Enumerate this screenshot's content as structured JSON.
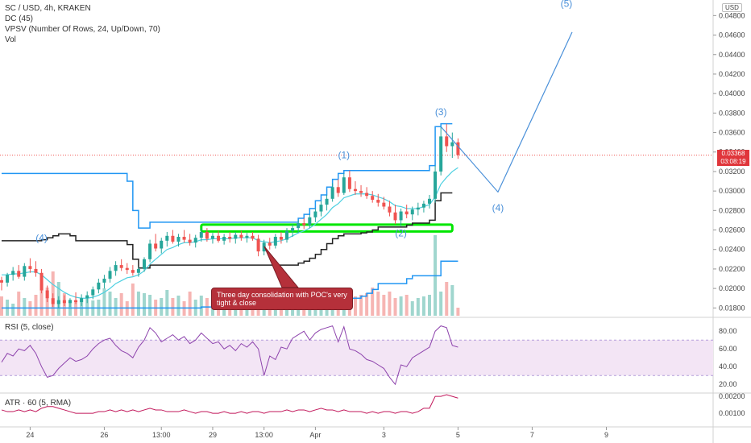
{
  "legend": {
    "title": "SC / USD, 4h, KRAKEN",
    "dc": "DC (45)",
    "vpsv": "VPSV (Number Of Rows, 24, Up/Down, 70)",
    "vol": "Vol",
    "rsi": "RSI (5, close)",
    "atr": "ATR · 60 (5, RMA)"
  },
  "currency_button": "USD",
  "last_price": {
    "value": "0.03368",
    "countdown": "03:08:19"
  },
  "annotation": "Three day consolidation with POC's very tight & close",
  "colors": {
    "up": "#26a69a",
    "down": "#ef5350",
    "dc_upper": "#2196f3",
    "dc_lower": "#2196f3",
    "dc_basis": "#222222",
    "ma": "#4dd0e1",
    "rsi": "#8e44ad",
    "atr": "#c2185b",
    "wave": "#4a90d9",
    "poc_box": "#00e600",
    "callout": "#b5303a"
  },
  "chart_data": [
    {
      "type": "candlestick",
      "panel": "price",
      "x_ticks": [
        "24",
        "26",
        "13:00",
        "29",
        "13:00",
        "Apr",
        "3",
        "5",
        "7",
        "9"
      ],
      "y_ticks": [
        "0.04800",
        "0.04600",
        "0.04400",
        "0.04200",
        "0.04000",
        "0.03800",
        "0.03600",
        "0.03400",
        "0.03200",
        "0.03000",
        "0.02800",
        "0.02600",
        "0.02400",
        "0.02200",
        "0.02000",
        "0.01800"
      ],
      "ylim": [
        0.0172,
        0.0496
      ],
      "xlim": [
        0,
        125
      ],
      "current_price": 0.03368,
      "ohlc": [
        [
          0.02085,
          0.0212,
          0.0198,
          0.0206
        ],
        [
          0.0206,
          0.0216,
          0.0202,
          0.0214
        ],
        [
          0.0214,
          0.0222,
          0.0208,
          0.0218
        ],
        [
          0.0218,
          0.0224,
          0.021,
          0.0212
        ],
        [
          0.0212,
          0.0226,
          0.0208,
          0.0223
        ],
        [
          0.0223,
          0.0231,
          0.0216,
          0.022
        ],
        [
          0.022,
          0.0228,
          0.0212,
          0.0216
        ],
        [
          0.0216,
          0.022,
          0.0195,
          0.0198
        ],
        [
          0.0198,
          0.0203,
          0.0186,
          0.019
        ],
        [
          0.019,
          0.0195,
          0.0181,
          0.0184
        ],
        [
          0.0184,
          0.0192,
          0.018,
          0.0188
        ],
        [
          0.0188,
          0.0193,
          0.0182,
          0.0185
        ],
        [
          0.0185,
          0.019,
          0.0181,
          0.0188
        ],
        [
          0.0188,
          0.0196,
          0.0184,
          0.0186
        ],
        [
          0.0186,
          0.0194,
          0.0182,
          0.019
        ],
        [
          0.019,
          0.0197,
          0.0185,
          0.0193
        ],
        [
          0.0193,
          0.0202,
          0.0189,
          0.0199
        ],
        [
          0.0199,
          0.021,
          0.0195,
          0.0206
        ],
        [
          0.0206,
          0.0214,
          0.02,
          0.021
        ],
        [
          0.021,
          0.0222,
          0.0206,
          0.0218
        ],
        [
          0.0218,
          0.0228,
          0.0213,
          0.0224
        ],
        [
          0.0224,
          0.023,
          0.0218,
          0.0221
        ],
        [
          0.0221,
          0.0226,
          0.0215,
          0.0219
        ],
        [
          0.0219,
          0.0224,
          0.0213,
          0.0216
        ],
        [
          0.0216,
          0.0222,
          0.0212,
          0.022
        ],
        [
          0.022,
          0.0232,
          0.0217,
          0.023
        ],
        [
          0.023,
          0.025,
          0.0227,
          0.0246
        ],
        [
          0.0246,
          0.0256,
          0.0238,
          0.0241
        ],
        [
          0.0241,
          0.0252,
          0.0236,
          0.0249
        ],
        [
          0.0249,
          0.0258,
          0.0243,
          0.0254
        ],
        [
          0.0254,
          0.026,
          0.0246,
          0.0248
        ],
        [
          0.0248,
          0.0256,
          0.0243,
          0.0253
        ],
        [
          0.0253,
          0.026,
          0.0247,
          0.025
        ],
        [
          0.025,
          0.0256,
          0.0244,
          0.0247
        ],
        [
          0.0247,
          0.0255,
          0.0242,
          0.0252
        ],
        [
          0.0252,
          0.0262,
          0.0248,
          0.0258
        ],
        [
          0.0258,
          0.0262,
          0.0248,
          0.0251
        ],
        [
          0.0251,
          0.0257,
          0.0246,
          0.0254
        ],
        [
          0.0254,
          0.0259,
          0.0247,
          0.0249
        ],
        [
          0.0249,
          0.0256,
          0.0245,
          0.0253
        ],
        [
          0.0253,
          0.0258,
          0.0247,
          0.0251
        ],
        [
          0.0251,
          0.0258,
          0.0246,
          0.0255
        ],
        [
          0.0255,
          0.0259,
          0.0249,
          0.0252
        ],
        [
          0.0252,
          0.0257,
          0.0247,
          0.0254
        ],
        [
          0.0254,
          0.0258,
          0.0249,
          0.0251
        ],
        [
          0.0251,
          0.0255,
          0.0233,
          0.0238
        ],
        [
          0.0238,
          0.025,
          0.0234,
          0.0247
        ],
        [
          0.0247,
          0.0252,
          0.024,
          0.0244
        ],
        [
          0.0244,
          0.0256,
          0.0241,
          0.0253
        ],
        [
          0.0253,
          0.0258,
          0.0246,
          0.025
        ],
        [
          0.025,
          0.0262,
          0.0247,
          0.0259
        ],
        [
          0.0259,
          0.0266,
          0.0253,
          0.0262
        ],
        [
          0.0262,
          0.027,
          0.0257,
          0.0267
        ],
        [
          0.0267,
          0.0272,
          0.0261,
          0.0265
        ],
        [
          0.0265,
          0.0276,
          0.0262,
          0.0273
        ],
        [
          0.0273,
          0.0282,
          0.0268,
          0.0279
        ],
        [
          0.0279,
          0.029,
          0.0274,
          0.0286
        ],
        [
          0.0286,
          0.0296,
          0.028,
          0.0292
        ],
        [
          0.0292,
          0.0308,
          0.0289,
          0.0304
        ],
        [
          0.0304,
          0.0312,
          0.0294,
          0.0298
        ],
        [
          0.0298,
          0.0318,
          0.0296,
          0.0314
        ],
        [
          0.0314,
          0.0321,
          0.0299,
          0.0302
        ],
        [
          0.0302,
          0.031,
          0.0296,
          0.03
        ],
        [
          0.03,
          0.0306,
          0.0294,
          0.0298
        ],
        [
          0.0298,
          0.0304,
          0.0292,
          0.0295
        ],
        [
          0.0295,
          0.03,
          0.0288,
          0.0291
        ],
        [
          0.0291,
          0.0297,
          0.0284,
          0.0288
        ],
        [
          0.0288,
          0.0294,
          0.0281,
          0.0284
        ],
        [
          0.0284,
          0.029,
          0.0274,
          0.0278
        ],
        [
          0.0278,
          0.0286,
          0.0266,
          0.027
        ],
        [
          0.027,
          0.0282,
          0.0264,
          0.0279
        ],
        [
          0.0279,
          0.0286,
          0.0272,
          0.0276
        ],
        [
          0.0276,
          0.0284,
          0.027,
          0.0281
        ],
        [
          0.0281,
          0.0288,
          0.0275,
          0.0283
        ],
        [
          0.0283,
          0.029,
          0.0278,
          0.0287
        ],
        [
          0.0287,
          0.0296,
          0.0282,
          0.0292
        ],
        [
          0.0292,
          0.0326,
          0.0288,
          0.032
        ],
        [
          0.032,
          0.0366,
          0.0316,
          0.0356
        ],
        [
          0.0356,
          0.0369,
          0.034,
          0.0346
        ],
        [
          0.0346,
          0.036,
          0.0334,
          0.035
        ],
        [
          0.035,
          0.0354,
          0.0333,
          0.0337
        ]
      ],
      "donchian_upper": [
        0.0318,
        0.0318,
        0.0318,
        0.0318,
        0.0318,
        0.0318,
        0.0318,
        0.0318,
        0.0318,
        0.0318,
        0.0318,
        0.0318,
        0.0318,
        0.0318,
        0.0318,
        0.0318,
        0.0318,
        0.0318,
        0.0318,
        0.0318,
        0.0318,
        0.0318,
        0.031,
        0.028,
        0.0262,
        0.0262,
        0.0268,
        0.0268,
        0.0268,
        0.0268,
        0.0268,
        0.0268,
        0.0268,
        0.0268,
        0.0268,
        0.0268,
        0.0268,
        0.0268,
        0.0268,
        0.0268,
        0.0268,
        0.0268,
        0.0268,
        0.0268,
        0.0268,
        0.0268,
        0.0268,
        0.0268,
        0.0268,
        0.0268,
        0.0268,
        0.0268,
        0.0272,
        0.0276,
        0.0282,
        0.029,
        0.0296,
        0.0304,
        0.0312,
        0.0318,
        0.0321,
        0.0321,
        0.0321,
        0.0321,
        0.0321,
        0.0321,
        0.0321,
        0.0321,
        0.0321,
        0.0321,
        0.0321,
        0.0321,
        0.0321,
        0.0321,
        0.0321,
        0.0326,
        0.0366,
        0.0369,
        0.0369,
        0.0369
      ],
      "donchian_lower": [
        0.018,
        0.018,
        0.018,
        0.018,
        0.018,
        0.018,
        0.018,
        0.018,
        0.018,
        0.018,
        0.018,
        0.018,
        0.018,
        0.018,
        0.018,
        0.018,
        0.018,
        0.018,
        0.018,
        0.018,
        0.018,
        0.018,
        0.018,
        0.018,
        0.018,
        0.018,
        0.018,
        0.018,
        0.018,
        0.018,
        0.018,
        0.018,
        0.018,
        0.018,
        0.018,
        0.0181,
        0.0181,
        0.0181,
        0.0181,
        0.0181,
        0.0181,
        0.0181,
        0.0181,
        0.0181,
        0.0181,
        0.0181,
        0.0181,
        0.0181,
        0.0181,
        0.0181,
        0.0181,
        0.0181,
        0.0181,
        0.0181,
        0.0181,
        0.0181,
        0.0184,
        0.0188,
        0.019,
        0.019,
        0.019,
        0.019,
        0.019,
        0.0192,
        0.0195,
        0.0199,
        0.0205,
        0.0205,
        0.0205,
        0.0205,
        0.0205,
        0.021,
        0.0213,
        0.0213,
        0.0213,
        0.0213,
        0.0213,
        0.0228,
        0.0228,
        0.0228,
        0.0228
      ],
      "donchian_basis": [
        0.0249,
        0.0249,
        0.0249,
        0.0249,
        0.0249,
        0.0249,
        0.0249,
        0.025,
        0.0252,
        0.0254,
        0.0256,
        0.0256,
        0.0254,
        0.0249,
        0.0249,
        0.0249,
        0.0249,
        0.0249,
        0.0249,
        0.0249,
        0.0249,
        0.0249,
        0.0245,
        0.023,
        0.0221,
        0.0221,
        0.0224,
        0.0224,
        0.0224,
        0.0224,
        0.0224,
        0.0224,
        0.0224,
        0.0224,
        0.0224,
        0.0224,
        0.0224,
        0.0224,
        0.0224,
        0.0224,
        0.0224,
        0.0224,
        0.0224,
        0.0224,
        0.0224,
        0.0224,
        0.0224,
        0.0224,
        0.0224,
        0.0224,
        0.0224,
        0.0224,
        0.0226,
        0.0228,
        0.0231,
        0.0235,
        0.024,
        0.0246,
        0.0251,
        0.0254,
        0.0256,
        0.0256,
        0.0256,
        0.0257,
        0.0258,
        0.026,
        0.0263,
        0.0263,
        0.0263,
        0.0263,
        0.0263,
        0.0265,
        0.0267,
        0.0267,
        0.0267,
        0.027,
        0.029,
        0.0298,
        0.0298,
        0.0298
      ],
      "ma": [
        0.0214,
        0.0214,
        0.0215,
        0.0215,
        0.0216,
        0.0217,
        0.0217,
        0.0214,
        0.0209,
        0.0204,
        0.02,
        0.0196,
        0.0193,
        0.0191,
        0.019,
        0.019,
        0.0191,
        0.0193,
        0.0196,
        0.02,
        0.0205,
        0.0208,
        0.0211,
        0.0212,
        0.0214,
        0.0218,
        0.0225,
        0.023,
        0.0235,
        0.024,
        0.0242,
        0.0245,
        0.0247,
        0.0247,
        0.0248,
        0.025,
        0.025,
        0.0251,
        0.0251,
        0.0251,
        0.0251,
        0.0252,
        0.0252,
        0.0252,
        0.0252,
        0.0249,
        0.0248,
        0.0247,
        0.0248,
        0.0249,
        0.0251,
        0.0254,
        0.0257,
        0.0259,
        0.0262,
        0.0266,
        0.0271,
        0.0276,
        0.0283,
        0.0287,
        0.0293,
        0.0295,
        0.0297,
        0.0297,
        0.0297,
        0.0296,
        0.0294,
        0.0292,
        0.0289,
        0.0285,
        0.0284,
        0.0282,
        0.0282,
        0.0282,
        0.0284,
        0.0286,
        0.0294,
        0.0307,
        0.0314,
        0.032,
        0.0324
      ],
      "volume": [
        0.24,
        0.2,
        0.15,
        0.3,
        0.22,
        0.18,
        0.26,
        0.4,
        0.35,
        0.55,
        0.42,
        0.28,
        0.2,
        0.18,
        0.22,
        0.24,
        0.19,
        0.2,
        0.34,
        0.3,
        0.22,
        0.28,
        0.18,
        0.4,
        0.3,
        0.28,
        0.26,
        0.2,
        0.22,
        0.32,
        0.22,
        0.25,
        0.18,
        0.3,
        0.2,
        0.25,
        0.22,
        0.18,
        0.2,
        0.16,
        0.19,
        0.17,
        0.15,
        0.18,
        0.16,
        0.14,
        0.2,
        0.18,
        0.16,
        0.17,
        0.18,
        0.16,
        0.21,
        0.19,
        0.22,
        0.17,
        0.2,
        0.1,
        0.12,
        0.2,
        0.15,
        0.22,
        0.24,
        0.26,
        0.28,
        0.35,
        0.3,
        0.26,
        0.3,
        0.22,
        0.24,
        0.26,
        0.18,
        0.22,
        0.24,
        0.26,
        1.0,
        0.3,
        0.42,
        0.38,
        0.1
      ],
      "wave_labels": [
        {
          "label": "(4)",
          "x": 7,
          "y": 0.02485
        },
        {
          "label": "(1)",
          "x": 60,
          "y": 0.03335
        },
        {
          "label": "(2)",
          "x": 70,
          "y": 0.02535
        },
        {
          "label": "(3)",
          "x": 77,
          "y": 0.0378
        },
        {
          "label": "(4)",
          "x": 87,
          "y": 0.02795
        },
        {
          "label": "(5)",
          "x": 99,
          "y": 0.0489
        }
      ],
      "projection": [
        [
          77,
          0.0366
        ],
        [
          87,
          0.0299
        ],
        [
          100,
          0.0463
        ]
      ],
      "consolidation_box": {
        "x0": 35,
        "x1": 79,
        "y0": 0.02585,
        "y1": 0.02655
      }
    },
    {
      "type": "line",
      "panel": "rsi",
      "y_ticks": [
        "80.00",
        "60.00",
        "40.00",
        "20.00"
      ],
      "ylim": [
        12,
        92
      ],
      "band": [
        30,
        70
      ],
      "values": [
        45,
        55,
        52,
        60,
        58,
        64,
        55,
        40,
        28,
        30,
        38,
        44,
        50,
        46,
        48,
        52,
        60,
        66,
        70,
        72,
        64,
        58,
        55,
        50,
        62,
        70,
        84,
        78,
        68,
        72,
        76,
        70,
        74,
        66,
        70,
        78,
        72,
        66,
        68,
        60,
        64,
        58,
        66,
        62,
        68,
        60,
        30,
        52,
        48,
        62,
        60,
        72,
        76,
        80,
        70,
        78,
        82,
        84,
        86,
        68,
        85,
        60,
        58,
        54,
        48,
        46,
        42,
        38,
        28,
        20,
        42,
        40,
        50,
        54,
        58,
        62,
        80,
        86,
        84,
        64,
        62
      ]
    },
    {
      "type": "line",
      "panel": "atr",
      "y_ticks": [
        "0.00200",
        "0.00100"
      ],
      "ylim": [
        0.0002,
        0.0021
      ],
      "values": [
        0.0012,
        0.0011,
        0.0011,
        0.0012,
        0.0011,
        0.0012,
        0.0011,
        0.0013,
        0.0014,
        0.0014,
        0.0013,
        0.0012,
        0.0011,
        0.001,
        0.001,
        0.001,
        0.001,
        0.0011,
        0.0011,
        0.0012,
        0.0011,
        0.0012,
        0.0011,
        0.0012,
        0.0011,
        0.0012,
        0.0013,
        0.0012,
        0.0012,
        0.0011,
        0.0011,
        0.0011,
        0.0012,
        0.0011,
        0.001,
        0.0011,
        0.0011,
        0.001,
        0.001,
        0.0011,
        0.001,
        0.001,
        0.0011,
        0.001,
        0.0011,
        0.0011,
        0.001,
        0.0011,
        0.0011,
        0.0011,
        0.0012,
        0.0011,
        0.0012,
        0.0012,
        0.0011,
        0.0012,
        0.0013,
        0.0012,
        0.0012,
        0.0011,
        0.0012,
        0.0011,
        0.0011,
        0.0011,
        0.001,
        0.0011,
        0.001,
        0.0011,
        0.0011,
        0.001,
        0.0011,
        0.0011,
        0.001,
        0.0011,
        0.0013,
        0.0013,
        0.002,
        0.002,
        0.0021,
        0.002,
        0.0019
      ]
    }
  ]
}
